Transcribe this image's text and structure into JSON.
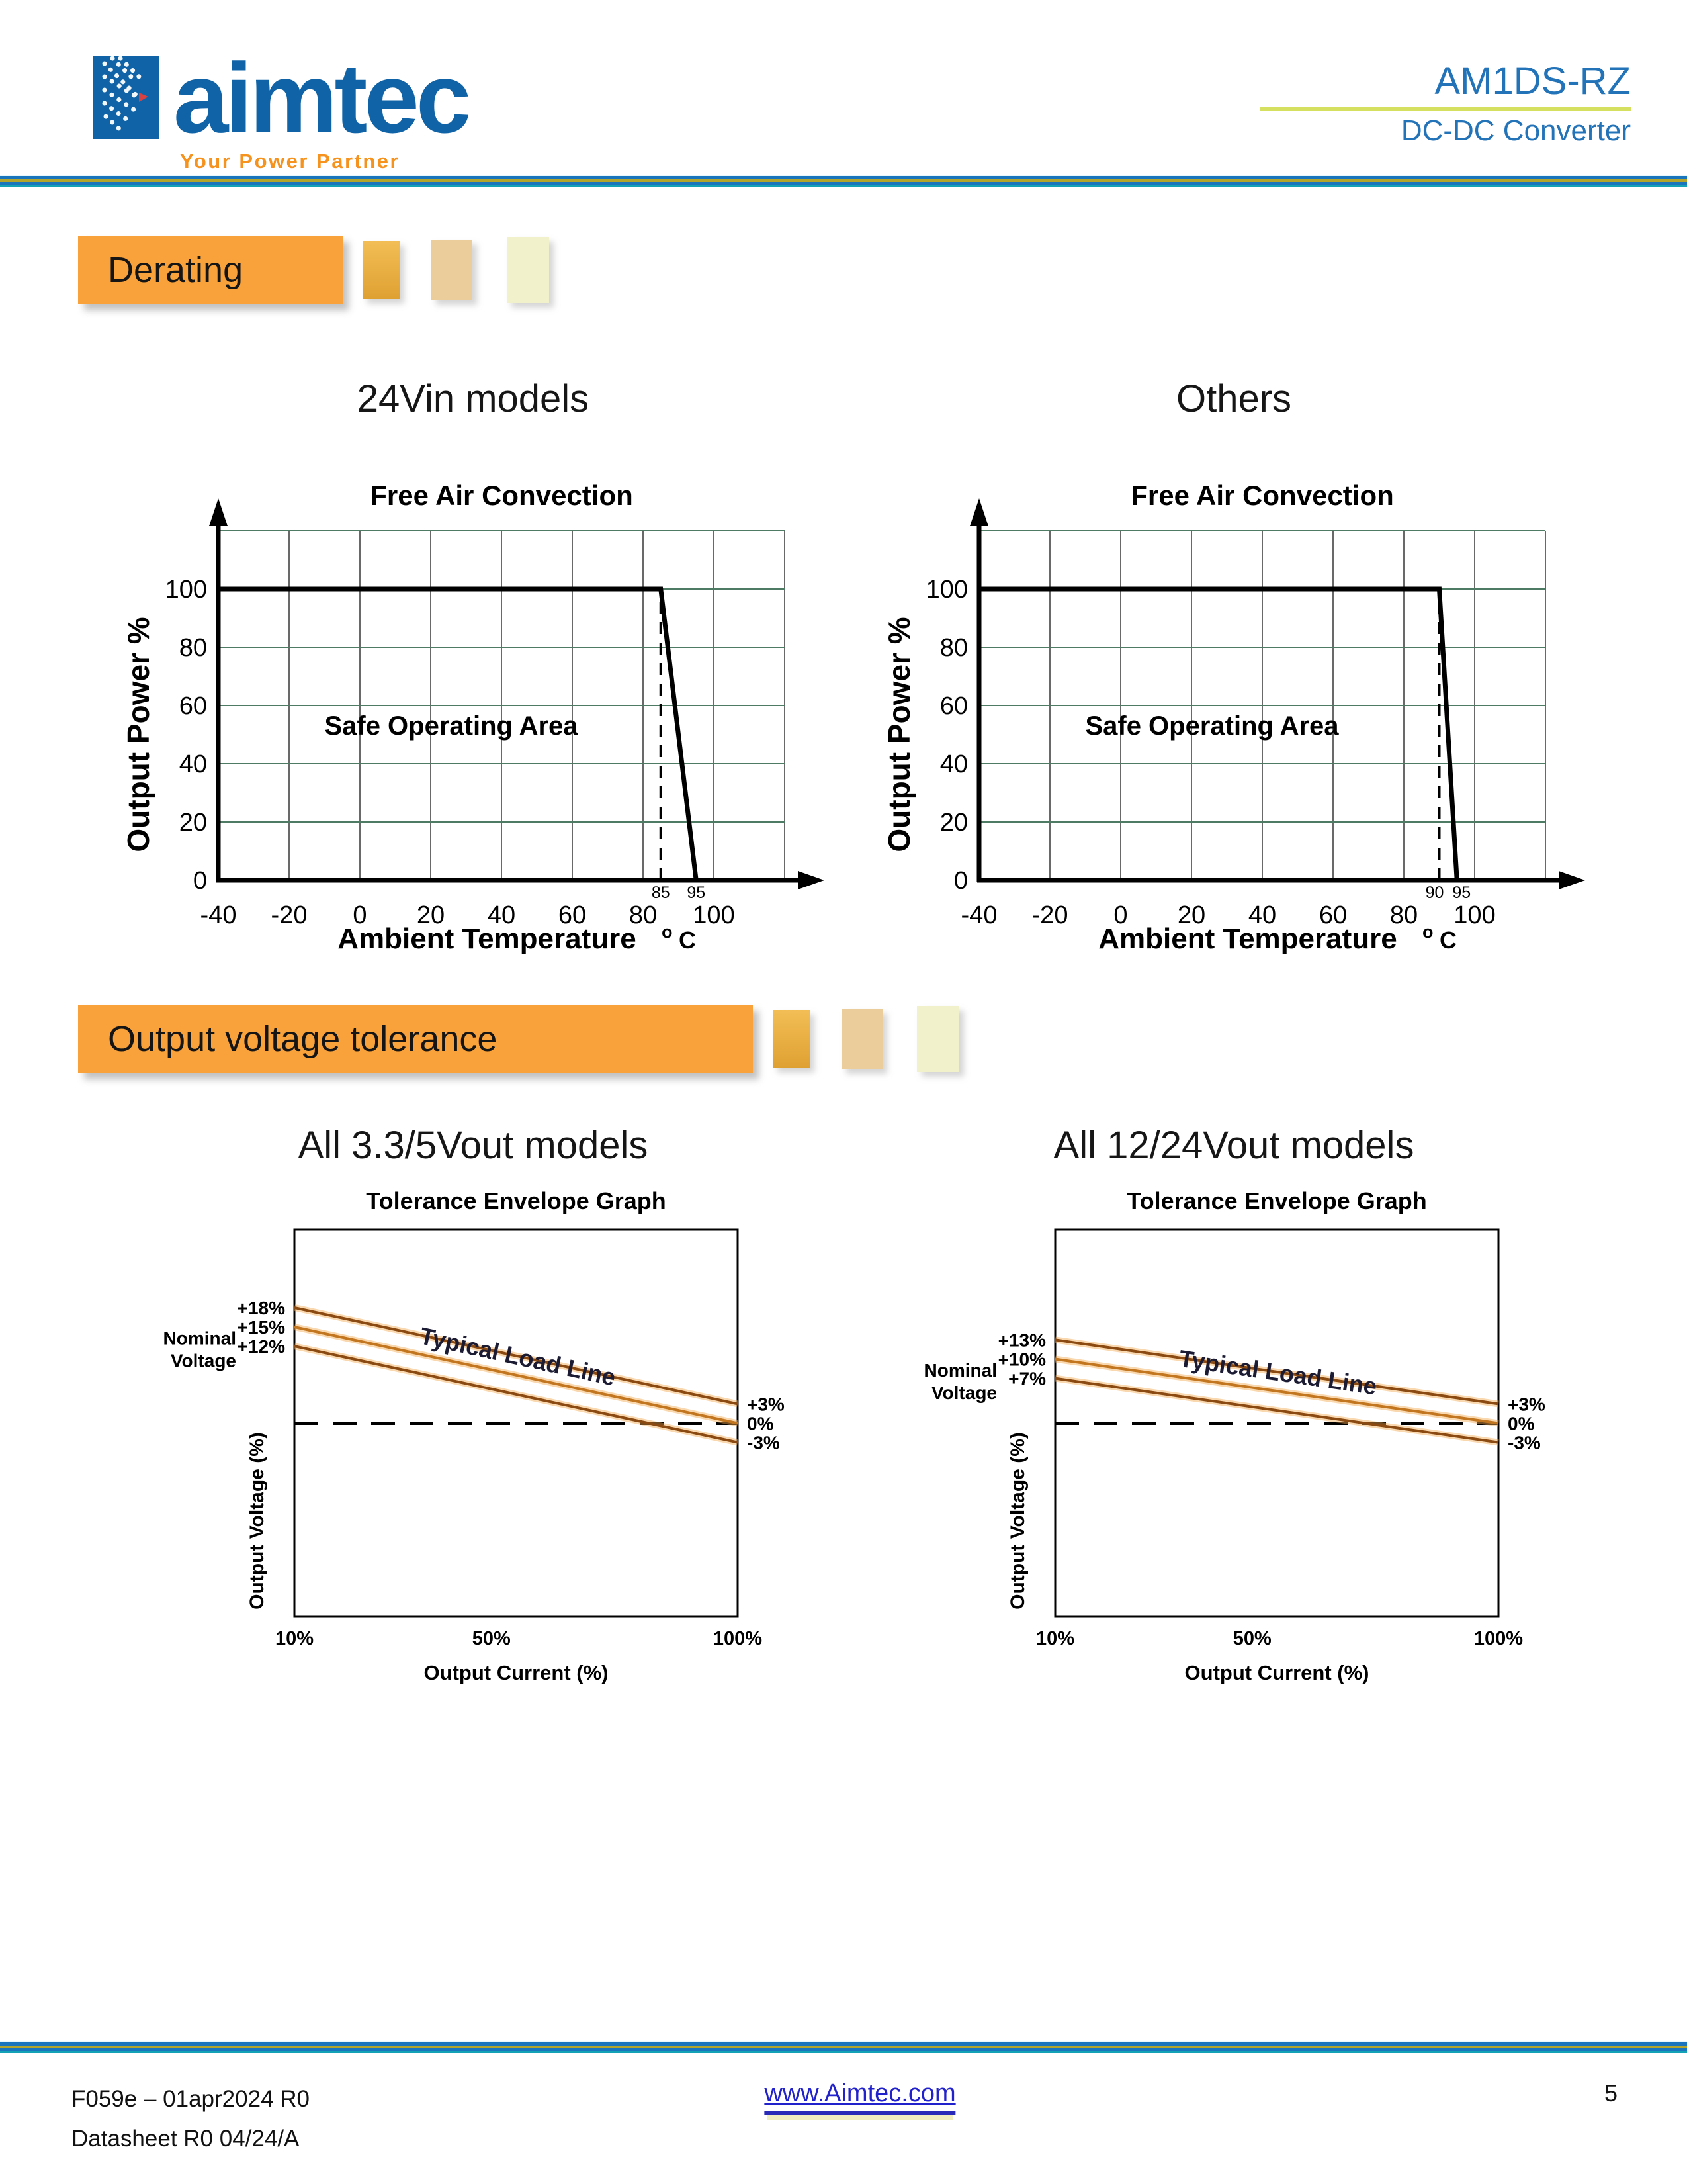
{
  "header": {
    "brand": "aimtec",
    "tagline": "Your Power Partner",
    "product": "AM1DS-RZ",
    "subtitle": "DC-DC Converter"
  },
  "sections": [
    {
      "title": "Derating"
    },
    {
      "title": "Output voltage tolerance"
    }
  ],
  "chart_data": [
    {
      "type": "line",
      "group": "derating",
      "title": "24Vin models",
      "chart_title": "Free Air Convection",
      "xlabel": "Ambient Temperature",
      "xlabel_unit": "o C",
      "ylabel": "Output Power %",
      "annotation": "Safe Operating Area",
      "x_ticks": [
        -40,
        -20,
        0,
        20,
        40,
        60,
        80,
        100
      ],
      "y_ticks": [
        0,
        20,
        40,
        60,
        80,
        100
      ],
      "xlim": [
        -40,
        120
      ],
      "ylim": [
        0,
        120
      ],
      "grid": true,
      "series": [
        {
          "name": "output-power-limit",
          "points": [
            [
              -40,
              100
            ],
            [
              85,
              100
            ],
            [
              95,
              0
            ]
          ]
        }
      ],
      "dashed_vline": 85,
      "knee_labels": [
        {
          "x": 85,
          "text": "85"
        },
        {
          "x": 95,
          "text": "95"
        }
      ],
      "colors": {
        "curve": "#000000",
        "grid_v": "#696969",
        "grid_h": "#4e7b63"
      }
    },
    {
      "type": "line",
      "group": "derating",
      "title": "Others",
      "chart_title": "Free Air Convection",
      "xlabel": "Ambient Temperature",
      "xlabel_unit": "o C",
      "ylabel": "Output Power %",
      "annotation": "Safe Operating Area",
      "x_ticks": [
        -40,
        -20,
        0,
        20,
        40,
        60,
        80,
        100
      ],
      "y_ticks": [
        0,
        20,
        40,
        60,
        80,
        100
      ],
      "xlim": [
        -40,
        120
      ],
      "ylim": [
        0,
        120
      ],
      "grid": true,
      "series": [
        {
          "name": "output-power-limit",
          "points": [
            [
              -40,
              100
            ],
            [
              90,
              100
            ],
            [
              95,
              0
            ]
          ]
        }
      ],
      "dashed_vline": 90,
      "knee_labels": [
        {
          "x": 90,
          "text": "90"
        },
        {
          "x": 95,
          "text": "95"
        }
      ],
      "colors": {
        "curve": "#000000",
        "grid_v": "#696969",
        "grid_h": "#4e7b63"
      }
    },
    {
      "type": "line",
      "group": "tolerance",
      "title": "All 3.3/5Vout models",
      "chart_title": "Tolerance Envelope Graph",
      "xlabel": "Output Current (%)",
      "ylabel": "Output Voltage (%)",
      "nominal_label": [
        "Nominal",
        "Voltage"
      ],
      "line_label": "Typical Load Line",
      "left_labels": [
        "+18%",
        "+15%",
        "+12%"
      ],
      "right_labels": [
        "+3%",
        "0%",
        "-3%"
      ],
      "x_ticks": [
        "10%",
        "50%",
        "100%"
      ],
      "x_tick_positions": [
        10,
        50,
        100
      ],
      "x_range": [
        10,
        100
      ],
      "dashed_hline": 0,
      "series": [
        {
          "name": "upper-tolerance-limit",
          "start": 18,
          "end": 3
        },
        {
          "name": "typical-load-line",
          "start": 15,
          "end": 0
        },
        {
          "name": "lower-tolerance-limit",
          "start": 12,
          "end": -3
        }
      ],
      "colors": {
        "envelope": "#8A4A12",
        "typical": "#C2761F",
        "glow": "#F5A94F",
        "label": "#1b1b33"
      }
    },
    {
      "type": "line",
      "group": "tolerance",
      "title": "All 12/24Vout models",
      "chart_title": "Tolerance Envelope Graph",
      "xlabel": "Output Current (%)",
      "ylabel": "Output Voltage (%)",
      "nominal_label": [
        "Nominal",
        "Voltage"
      ],
      "line_label": "Typical Load Line",
      "left_labels": [
        "+13%",
        "+10%",
        "+7%"
      ],
      "right_labels": [
        "+3%",
        "0%",
        "-3%"
      ],
      "x_ticks": [
        "10%",
        "50%",
        "100%"
      ],
      "x_tick_positions": [
        10,
        50,
        100
      ],
      "x_range": [
        10,
        100
      ],
      "dashed_hline": 0,
      "series": [
        {
          "name": "upper-tolerance-limit",
          "start": 13,
          "end": 3
        },
        {
          "name": "typical-load-line",
          "start": 10,
          "end": 0
        },
        {
          "name": "lower-tolerance-limit",
          "start": 7,
          "end": -3
        }
      ],
      "colors": {
        "envelope": "#8A4A12",
        "typical": "#C2761F",
        "glow": "#F5A94F",
        "label": "#1b1b33"
      }
    }
  ],
  "footer": {
    "doc_id": "F059e – 01apr2024 R0",
    "datasheet": "Datasheet R0 04/24/A",
    "website": "www.Aimtec.com",
    "page": "5"
  },
  "colors": {
    "brand_blue": "#0F63A6",
    "tagline_orange": "#F6921E",
    "product_blue": "#2373B9",
    "header_rule_yellow_green": "#D5E060",
    "divider_blue": "#1b75bc",
    "divider_yellow": "#b3a52c",
    "divider_teal": "#14a3b6",
    "section_orange": "#F9A23B",
    "link_blue": "#2222CC"
  }
}
